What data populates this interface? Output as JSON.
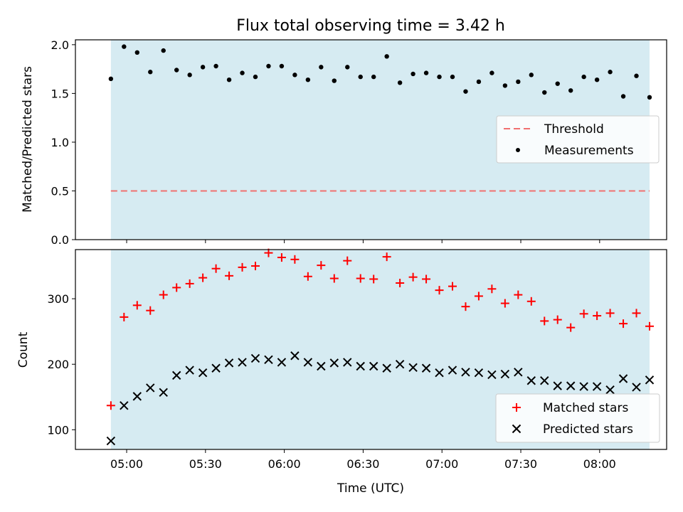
{
  "chart_data": [
    {
      "type": "scatter",
      "title": "Flux total observing time = 3.42 h",
      "ylabel": "Matched/Predicted stars",
      "ylim": [
        0,
        2.05
      ],
      "yticks": [
        "0.0",
        "0.5",
        "1.0",
        "1.5",
        "2.0"
      ],
      "threshold": {
        "name": "Threshold",
        "value": 0.5,
        "color": "#f07070"
      },
      "series": [
        {
          "name": "Measurements",
          "color": "#000000",
          "x": [
            "04:54",
            "04:59",
            "05:04",
            "05:09",
            "05:14",
            "05:19",
            "05:24",
            "05:29",
            "05:34",
            "05:39",
            "05:44",
            "05:49",
            "05:54",
            "05:59",
            "06:04",
            "06:09",
            "06:14",
            "06:19",
            "06:24",
            "06:29",
            "06:34",
            "06:39",
            "06:44",
            "06:49",
            "06:54",
            "06:59",
            "07:04",
            "07:09",
            "07:14",
            "07:19",
            "07:24",
            "07:29",
            "07:34",
            "07:39",
            "07:44",
            "07:49",
            "07:54",
            "07:59",
            "08:04",
            "08:09",
            "08:14",
            "08:19"
          ],
          "y": [
            1.65,
            1.98,
            1.92,
            1.72,
            1.94,
            1.74,
            1.69,
            1.77,
            1.78,
            1.64,
            1.71,
            1.67,
            1.78,
            1.78,
            1.69,
            1.64,
            1.77,
            1.63,
            1.77,
            1.67,
            1.67,
            1.88,
            1.61,
            1.7,
            1.71,
            1.67,
            1.67,
            1.52,
            1.62,
            1.71,
            1.58,
            1.62,
            1.69,
            1.51,
            1.6,
            1.53,
            1.67,
            1.64,
            1.72,
            1.47,
            1.68,
            1.46
          ]
        }
      ],
      "legend": "center-right",
      "shade_color": "#add8e6"
    },
    {
      "type": "scatter",
      "xlabel": "Time (UTC)",
      "ylabel": "Count",
      "ylim": [
        70,
        375
      ],
      "yticks": [
        "100",
        "200",
        "300"
      ],
      "xticks": [
        "05:00",
        "05:30",
        "06:00",
        "06:30",
        "07:00",
        "07:30",
        "08:00"
      ],
      "series": [
        {
          "name": "Matched stars",
          "color": "#ff0000",
          "marker": "plus",
          "y": [
            137,
            272,
            290,
            282,
            306,
            317,
            323,
            332,
            346,
            335,
            348,
            350,
            370,
            363,
            360,
            334,
            351,
            331,
            358,
            331,
            330,
            364,
            324,
            333,
            330,
            313,
            319,
            288,
            304,
            315,
            293,
            306,
            296,
            266,
            268,
            256,
            277,
            274,
            278,
            262,
            278,
            258
          ]
        },
        {
          "name": "Predicted stars",
          "color": "#000000",
          "marker": "x",
          "y": [
            83,
            137,
            151,
            164,
            157,
            183,
            191,
            187,
            194,
            202,
            203,
            209,
            207,
            203,
            213,
            203,
            197,
            202,
            203,
            197,
            197,
            194,
            200,
            195,
            194,
            187,
            191,
            188,
            187,
            184,
            185,
            188,
            175,
            175,
            167,
            167,
            166,
            166,
            161,
            178,
            165,
            176
          ]
        }
      ],
      "legend": "lower-right",
      "shade_color": "#add8e6"
    }
  ]
}
